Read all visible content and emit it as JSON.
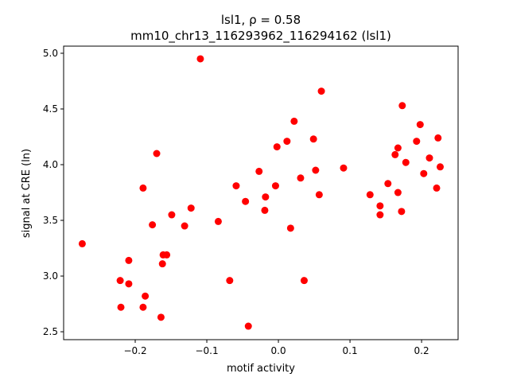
{
  "chart_data": {
    "type": "scatter",
    "title_line1": "lsl1, ρ = 0.58",
    "title_line2": "mm10_chr13_116293962_116294162 (lsl1)",
    "xlabel": "motif activity",
    "ylabel": "signal at CRE (ln)",
    "xlim": [
      -0.3,
      0.251
    ],
    "ylim": [
      2.429,
      5.064
    ],
    "xticks": [
      -0.2,
      -0.1,
      0.0,
      0.1,
      0.2
    ],
    "xtick_labels": [
      "−0.2",
      "−0.1",
      "0.0",
      "0.1",
      "0.2"
    ],
    "yticks": [
      2.5,
      3.0,
      3.5,
      4.0,
      4.5,
      5.0
    ],
    "ytick_labels": [
      "2.5",
      "3.0",
      "3.5",
      "4.0",
      "4.5",
      "5.0"
    ],
    "grid": false,
    "marker_color": "#ff0000",
    "points": [
      [
        -0.274,
        3.29
      ],
      [
        -0.221,
        2.96
      ],
      [
        -0.22,
        2.72
      ],
      [
        -0.209,
        3.14
      ],
      [
        -0.209,
        2.93
      ],
      [
        -0.189,
        3.79
      ],
      [
        -0.189,
        2.72
      ],
      [
        -0.186,
        2.82
      ],
      [
        -0.17,
        4.1
      ],
      [
        -0.176,
        3.46
      ],
      [
        -0.164,
        2.63
      ],
      [
        -0.161,
        3.19
      ],
      [
        -0.156,
        3.19
      ],
      [
        -0.162,
        3.11
      ],
      [
        -0.149,
        3.55
      ],
      [
        -0.131,
        3.45
      ],
      [
        -0.122,
        3.61
      ],
      [
        -0.109,
        4.95
      ],
      [
        -0.084,
        3.49
      ],
      [
        -0.068,
        2.96
      ],
      [
        -0.059,
        3.81
      ],
      [
        -0.046,
        3.67
      ],
      [
        -0.042,
        2.55
      ],
      [
        -0.027,
        3.94
      ],
      [
        -0.018,
        3.71
      ],
      [
        -0.019,
        3.59
      ],
      [
        -0.004,
        3.81
      ],
      [
        -0.002,
        4.16
      ],
      [
        0.012,
        4.21
      ],
      [
        0.017,
        3.43
      ],
      [
        0.022,
        4.39
      ],
      [
        0.031,
        3.88
      ],
      [
        0.036,
        2.96
      ],
      [
        0.049,
        4.23
      ],
      [
        0.052,
        3.95
      ],
      [
        0.057,
        3.73
      ],
      [
        0.06,
        4.66
      ],
      [
        0.091,
        3.97
      ],
      [
        0.128,
        3.73
      ],
      [
        0.142,
        3.63
      ],
      [
        0.142,
        3.55
      ],
      [
        0.153,
        3.83
      ],
      [
        0.163,
        4.09
      ],
      [
        0.167,
        4.15
      ],
      [
        0.167,
        3.75
      ],
      [
        0.172,
        3.58
      ],
      [
        0.173,
        4.53
      ],
      [
        0.178,
        4.02
      ],
      [
        0.193,
        4.21
      ],
      [
        0.198,
        4.36
      ],
      [
        0.203,
        3.92
      ],
      [
        0.211,
        4.06
      ],
      [
        0.221,
        3.79
      ],
      [
        0.223,
        4.24
      ],
      [
        0.226,
        3.98
      ]
    ]
  }
}
